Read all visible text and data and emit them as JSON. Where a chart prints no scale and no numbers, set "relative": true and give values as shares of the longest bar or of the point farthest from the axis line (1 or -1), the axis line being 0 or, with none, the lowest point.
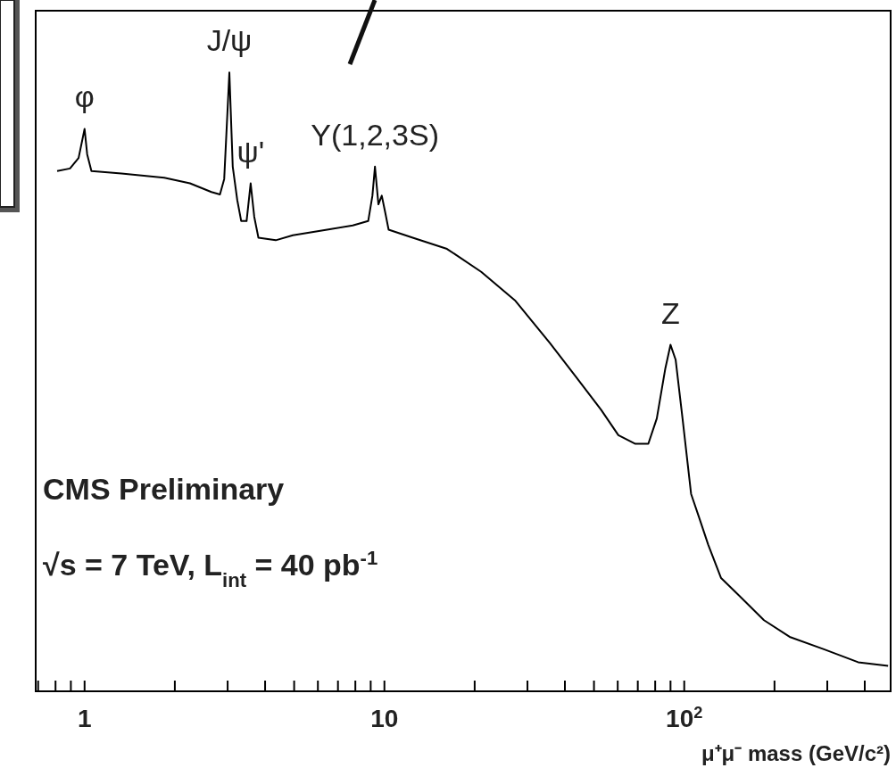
{
  "chart_data": {
    "type": "line",
    "relative": true,
    "xlabel": "μ⁺μ⁻ mass (GeV/c²)",
    "log": "x",
    "xlim": [
      0.687,
      488
    ],
    "xticks": [
      {
        "value": 0.7,
        "label": null
      },
      {
        "value": 0.8,
        "label": null
      },
      {
        "value": 0.9,
        "label": null
      },
      1,
      {
        "value": 2,
        "label": null
      },
      {
        "value": 3,
        "label": null
      },
      {
        "value": 4,
        "label": null
      },
      {
        "value": 5,
        "label": null
      },
      {
        "value": 6,
        "label": null
      },
      {
        "value": 7,
        "label": null
      },
      {
        "value": 8,
        "label": null
      },
      {
        "value": 9,
        "label": null
      },
      10,
      {
        "value": 20,
        "label": null
      },
      {
        "value": 30,
        "label": null
      },
      {
        "value": 40,
        "label": null
      },
      {
        "value": 50,
        "label": null
      },
      {
        "value": 60,
        "label": null
      },
      {
        "value": 70,
        "label": null
      },
      {
        "value": 80,
        "label": null
      },
      {
        "value": 90,
        "label": null
      },
      {
        "value": 100,
        "label": "10$^{2}$"
      },
      {
        "value": 200,
        "label": null
      },
      {
        "value": 300,
        "label": null
      },
      {
        "value": 400,
        "label": null
      }
    ],
    "tick_labels": "x",
    "line_style": "solid",
    "series": [
      {
        "color": "#000000",
        "x": [
          0.81,
          0.894,
          0.955,
          1.0,
          1.02,
          1.054,
          1.327,
          1.844,
          2.246,
          2.648,
          2.828,
          2.922,
          3.04,
          3.12,
          3.23,
          3.33,
          3.47,
          3.58,
          3.68,
          3.8,
          4.34,
          4.95,
          6.44,
          7.84,
          8.83,
          9.12,
          9.3,
          9.55,
          9.8,
          10.07,
          10.33,
          12.43,
          16.17,
          21.03,
          27.36,
          35.6,
          43.4,
          52.8,
          60.3,
          68.7,
          75.9,
          81.0,
          86.5,
          90.0,
          93.6,
          98.7,
          105.4,
          112.6,
          120.2,
          132.7,
          151.4,
          184.4,
          224.6,
          292.3,
          380.2,
          478.6
        ],
        "values": [
          0.841,
          0.845,
          0.862,
          0.909,
          0.868,
          0.841,
          0.837,
          0.83,
          0.821,
          0.807,
          0.803,
          0.828,
          1.0,
          0.848,
          0.794,
          0.76,
          0.76,
          0.821,
          0.767,
          0.733,
          0.729,
          0.737,
          0.746,
          0.753,
          0.76,
          0.801,
          0.848,
          0.787,
          0.801,
          0.773,
          0.746,
          0.733,
          0.715,
          0.678,
          0.631,
          0.563,
          0.509,
          0.455,
          0.414,
          0.4,
          0.4,
          0.441,
          0.522,
          0.56,
          0.536,
          0.441,
          0.319,
          0.278,
          0.237,
          0.183,
          0.156,
          0.115,
          0.088,
          0.068,
          0.047,
          0.041
        ]
      }
    ],
    "annotations": [
      {
        "text": "φ",
        "x": 1.0,
        "y": 0.909
      },
      {
        "text": "J/ψ",
        "x": 3.04,
        "y": 1.0
      },
      {
        "text": "ψ'",
        "x": 3.58,
        "y": 0.821
      },
      {
        "text": "Υ(1,2,3S)",
        "x": 9.3,
        "y": 0.848
      },
      {
        "text": "Z",
        "x": 90.0,
        "y": 0.56
      },
      "CMS Preliminary",
      "√s = 7 TeV,  L$_{int}$ = 40 pb$^{-1}$"
    ]
  }
}
